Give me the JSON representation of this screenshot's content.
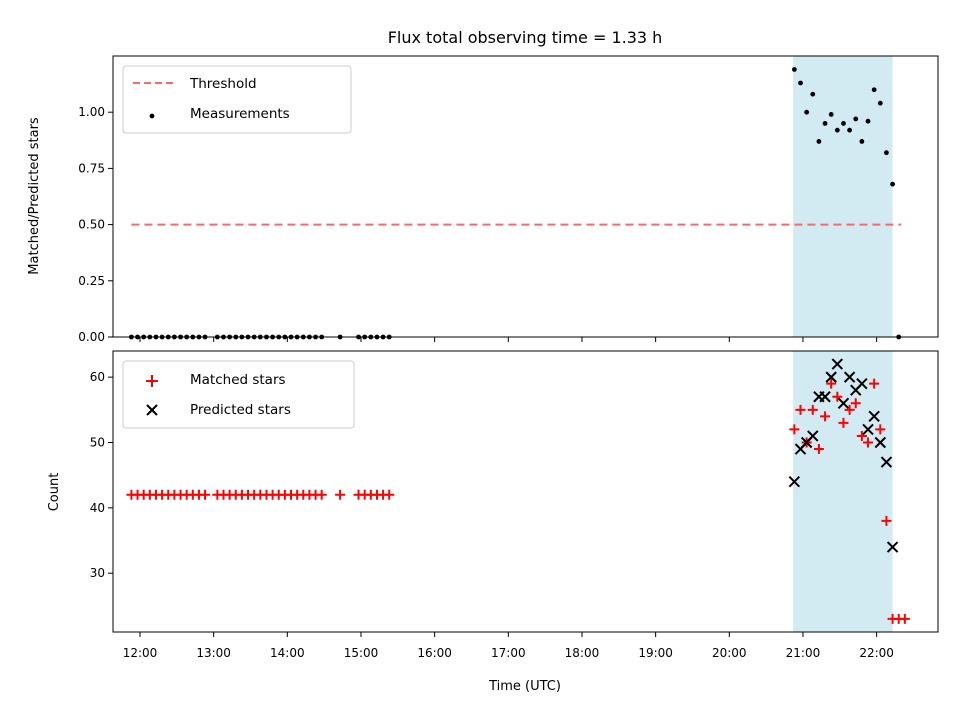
{
  "chart_data": [
    {
      "type": "scatter",
      "title": "Flux total observing time = 1.33 h",
      "ylabel": "Matched/Predicted stars",
      "xlabel": "",
      "ylim": [
        0,
        1.25
      ],
      "yticks": [
        "0.00",
        "0.25",
        "0.50",
        "0.75",
        "1.00"
      ],
      "ytick_values": [
        0,
        0.25,
        0.5,
        0.75,
        1.0
      ],
      "xlim": [
        "11:38",
        "22:50"
      ],
      "legend_position": "top-left",
      "highlight_span": [
        "20:52",
        "22:13"
      ],
      "highlight_color": "#add8e6",
      "series": [
        {
          "name": "Threshold",
          "kind": "dashed-line",
          "color": "#ff6666",
          "x": [
            "11:53",
            "22:20"
          ],
          "y": [
            0.5,
            0.5
          ]
        },
        {
          "name": "Measurements",
          "kind": "dots",
          "color": "#000000",
          "x": [
            "11:53",
            "11:58",
            "12:03",
            "12:08",
            "12:13",
            "12:18",
            "12:23",
            "12:28",
            "12:33",
            "12:38",
            "12:43",
            "12:48",
            "12:53",
            "13:03",
            "13:08",
            "13:13",
            "13:18",
            "13:23",
            "13:28",
            "13:33",
            "13:38",
            "13:43",
            "13:48",
            "13:53",
            "13:58",
            "14:03",
            "14:08",
            "14:13",
            "14:18",
            "14:23",
            "14:28",
            "14:43",
            "14:58",
            "15:03",
            "15:08",
            "15:13",
            "15:18",
            "15:23",
            "20:53",
            "20:58",
            "21:03",
            "21:08",
            "21:13",
            "21:18",
            "21:23",
            "21:28",
            "21:33",
            "21:38",
            "21:43",
            "21:48",
            "21:53",
            "21:58",
            "22:03",
            "22:08",
            "22:13",
            "22:18"
          ],
          "y": [
            0,
            0,
            0,
            0,
            0,
            0,
            0,
            0,
            0,
            0,
            0,
            0,
            0,
            0,
            0,
            0,
            0,
            0,
            0,
            0,
            0,
            0,
            0,
            0,
            0,
            0,
            0,
            0,
            0,
            0,
            0,
            0,
            0,
            0,
            0,
            0,
            0,
            0,
            1.19,
            1.13,
            1.0,
            1.08,
            0.87,
            0.95,
            0.99,
            0.92,
            0.95,
            0.92,
            0.97,
            0.87,
            0.96,
            1.1,
            1.04,
            0.82,
            0.68,
            0.0
          ]
        }
      ]
    },
    {
      "type": "scatter",
      "title": "",
      "ylabel": "Count",
      "xlabel": "Time (UTC)",
      "ylim": [
        21,
        64
      ],
      "yticks": [
        "30",
        "40",
        "50",
        "60"
      ],
      "ytick_values": [
        30,
        40,
        50,
        60
      ],
      "xlim": [
        "11:38",
        "22:50"
      ],
      "xticks": [
        "12:00",
        "13:00",
        "14:00",
        "15:00",
        "16:00",
        "17:00",
        "18:00",
        "19:00",
        "20:00",
        "21:00",
        "22:00"
      ],
      "legend_position": "top-left",
      "highlight_span": [
        "20:52",
        "22:13"
      ],
      "highlight_color": "#add8e6",
      "series": [
        {
          "name": "Matched stars",
          "kind": "plus",
          "color": "#ff0000",
          "x": [
            "11:53",
            "11:58",
            "12:03",
            "12:08",
            "12:13",
            "12:18",
            "12:23",
            "12:28",
            "12:33",
            "12:38",
            "12:43",
            "12:48",
            "12:53",
            "13:03",
            "13:08",
            "13:13",
            "13:18",
            "13:23",
            "13:28",
            "13:33",
            "13:38",
            "13:43",
            "13:48",
            "13:53",
            "13:58",
            "14:03",
            "14:08",
            "14:13",
            "14:18",
            "14:23",
            "14:28",
            "14:43",
            "14:58",
            "15:03",
            "15:08",
            "15:13",
            "15:18",
            "15:23",
            "20:53",
            "20:58",
            "21:03",
            "21:08",
            "21:13",
            "21:18",
            "21:23",
            "21:28",
            "21:33",
            "21:38",
            "21:43",
            "21:48",
            "21:53",
            "21:58",
            "22:03",
            "22:08",
            "22:13",
            "22:18",
            "22:23"
          ],
          "y": [
            42,
            42,
            42,
            42,
            42,
            42,
            42,
            42,
            42,
            42,
            42,
            42,
            42,
            42,
            42,
            42,
            42,
            42,
            42,
            42,
            42,
            42,
            42,
            42,
            42,
            42,
            42,
            42,
            42,
            42,
            42,
            42,
            42,
            42,
            42,
            42,
            42,
            42,
            52,
            55,
            50,
            55,
            49,
            54,
            59,
            57,
            53,
            55,
            56,
            51,
            50,
            59,
            52,
            38,
            23,
            23,
            23
          ]
        },
        {
          "name": "Predicted stars",
          "kind": "cross",
          "color": "#000000",
          "x": [
            "20:53",
            "20:58",
            "21:03",
            "21:08",
            "21:13",
            "21:18",
            "21:23",
            "21:28",
            "21:33",
            "21:38",
            "21:43",
            "21:48",
            "21:53",
            "21:58",
            "22:03",
            "22:08",
            "22:13"
          ],
          "y": [
            44,
            49,
            50,
            51,
            57,
            57,
            60,
            62,
            56,
            60,
            58,
            59,
            52,
            54,
            50,
            47,
            34
          ]
        }
      ]
    }
  ]
}
